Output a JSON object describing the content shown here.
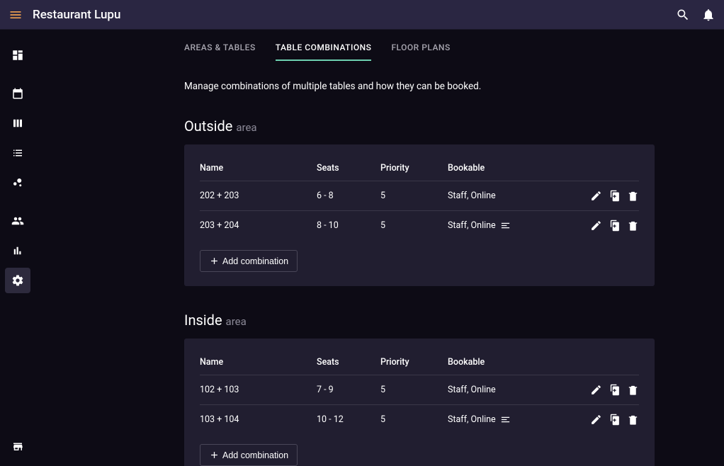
{
  "app_title": "Restaurant Lupu",
  "tabs": {
    "areas": "AREAS & TABLES",
    "combinations": "TABLE COMBINATIONS",
    "floorplans": "FLOOR PLANS"
  },
  "description": "Manage combinations of multiple tables and how they can be booked.",
  "columns": {
    "name": "Name",
    "seats": "Seats",
    "priority": "Priority",
    "bookable": "Bookable"
  },
  "area_suffix": "area",
  "add_button": "Add combination",
  "areas": [
    {
      "title": "Outside",
      "rows": [
        {
          "name": "202 + 203",
          "seats": "6 - 8",
          "priority": "5",
          "bookable": "Staff, Online",
          "has_notes": false
        },
        {
          "name": "203 + 204",
          "seats": "8 - 10",
          "priority": "5",
          "bookable": "Staff, Online",
          "has_notes": true
        }
      ]
    },
    {
      "title": "Inside",
      "rows": [
        {
          "name": "102 + 103",
          "seats": "7 - 9",
          "priority": "5",
          "bookable": "Staff, Online",
          "has_notes": false
        },
        {
          "name": "103 + 104",
          "seats": "10 - 12",
          "priority": "5",
          "bookable": "Staff, Online",
          "has_notes": true
        }
      ]
    }
  ]
}
